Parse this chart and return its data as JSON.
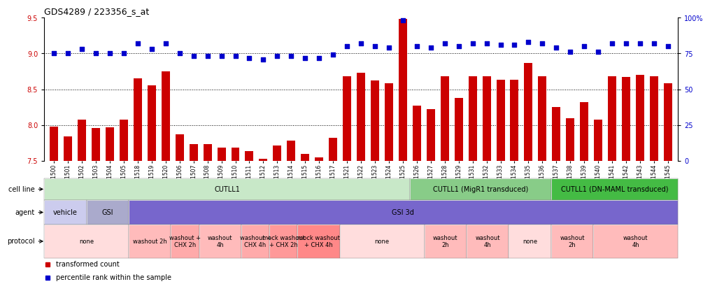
{
  "title": "GDS4289 / 223356_s_at",
  "samples": [
    "GSM731500",
    "GSM731501",
    "GSM731502",
    "GSM731503",
    "GSM731504",
    "GSM731505",
    "GSM731518",
    "GSM731519",
    "GSM731520",
    "GSM731506",
    "GSM731507",
    "GSM731508",
    "GSM731509",
    "GSM731510",
    "GSM731511",
    "GSM731512",
    "GSM731513",
    "GSM731514",
    "GSM731515",
    "GSM731516",
    "GSM731517",
    "GSM731521",
    "GSM731522",
    "GSM731523",
    "GSM731524",
    "GSM731525",
    "GSM731526",
    "GSM731527",
    "GSM731528",
    "GSM731529",
    "GSM731531",
    "GSM731532",
    "GSM731533",
    "GSM731534",
    "GSM731535",
    "GSM731536",
    "GSM731537",
    "GSM731538",
    "GSM731539",
    "GSM731540",
    "GSM731541",
    "GSM731542",
    "GSM731543",
    "GSM731544",
    "GSM731545"
  ],
  "bar_values": [
    7.98,
    7.84,
    8.08,
    7.96,
    7.97,
    8.08,
    8.65,
    8.55,
    8.75,
    7.87,
    7.73,
    7.73,
    7.69,
    7.69,
    7.64,
    7.53,
    7.72,
    7.78,
    7.6,
    7.55,
    7.82,
    8.68,
    8.73,
    8.62,
    8.58,
    9.48,
    8.27,
    8.22,
    8.68,
    8.38,
    8.68,
    8.68,
    8.63,
    8.63,
    8.87,
    8.68,
    8.25,
    8.1,
    8.32,
    8.08,
    8.68,
    8.67,
    8.7,
    8.68,
    8.58
  ],
  "percentile_values": [
    75,
    75,
    78,
    75,
    75,
    75,
    82,
    78,
    82,
    75,
    73,
    73,
    73,
    73,
    72,
    71,
    73,
    73,
    72,
    72,
    74,
    80,
    82,
    80,
    79,
    98,
    80,
    79,
    82,
    80,
    82,
    82,
    81,
    81,
    83,
    82,
    79,
    76,
    80,
    76,
    82,
    82,
    82,
    82,
    80
  ],
  "ylim_left": [
    7.5,
    9.5
  ],
  "ylim_right": [
    0,
    100
  ],
  "yticks_left": [
    7.5,
    8.0,
    8.5,
    9.0,
    9.5
  ],
  "yticks_right": [
    0,
    25,
    50,
    75,
    100
  ],
  "bar_color": "#CC0000",
  "dot_color": "#0000CC",
  "bar_bottom": 7.5,
  "cell_line_groups": [
    {
      "label": "CUTLL1",
      "start": 0,
      "end": 26,
      "color": "#C8E8C8"
    },
    {
      "label": "CUTLL1 (MigR1 transduced)",
      "start": 26,
      "end": 36,
      "color": "#88CC88"
    },
    {
      "label": "CUTLL1 (DN-MAML transduced)",
      "start": 36,
      "end": 45,
      "color": "#44BB44"
    }
  ],
  "agent_groups": [
    {
      "label": "vehicle",
      "start": 0,
      "end": 3,
      "color": "#CCCCEE"
    },
    {
      "label": "GSI",
      "start": 3,
      "end": 6,
      "color": "#AAAACC"
    },
    {
      "label": "GSI 3d",
      "start": 6,
      "end": 45,
      "color": "#7766CC"
    }
  ],
  "protocol_groups": [
    {
      "label": "none",
      "start": 0,
      "end": 6,
      "color": "#FFDDDD"
    },
    {
      "label": "washout 2h",
      "start": 6,
      "end": 9,
      "color": "#FFBBBB"
    },
    {
      "label": "washout +\nCHX 2h",
      "start": 9,
      "end": 11,
      "color": "#FFAAAA"
    },
    {
      "label": "washout\n4h",
      "start": 11,
      "end": 14,
      "color": "#FFBBBB"
    },
    {
      "label": "washout +\nCHX 4h",
      "start": 14,
      "end": 16,
      "color": "#FFAAAA"
    },
    {
      "label": "mock washout\n+ CHX 2h",
      "start": 16,
      "end": 18,
      "color": "#FF9999"
    },
    {
      "label": "mock washout\n+ CHX 4h",
      "start": 18,
      "end": 21,
      "color": "#FF8888"
    },
    {
      "label": "none",
      "start": 21,
      "end": 27,
      "color": "#FFDDDD"
    },
    {
      "label": "washout\n2h",
      "start": 27,
      "end": 30,
      "color": "#FFBBBB"
    },
    {
      "label": "washout\n4h",
      "start": 30,
      "end": 33,
      "color": "#FFBBBB"
    },
    {
      "label": "none",
      "start": 33,
      "end": 36,
      "color": "#FFDDDD"
    },
    {
      "label": "washout\n2h",
      "start": 36,
      "end": 39,
      "color": "#FFBBBB"
    },
    {
      "label": "washout\n4h",
      "start": 39,
      "end": 45,
      "color": "#FFBBBB"
    }
  ]
}
